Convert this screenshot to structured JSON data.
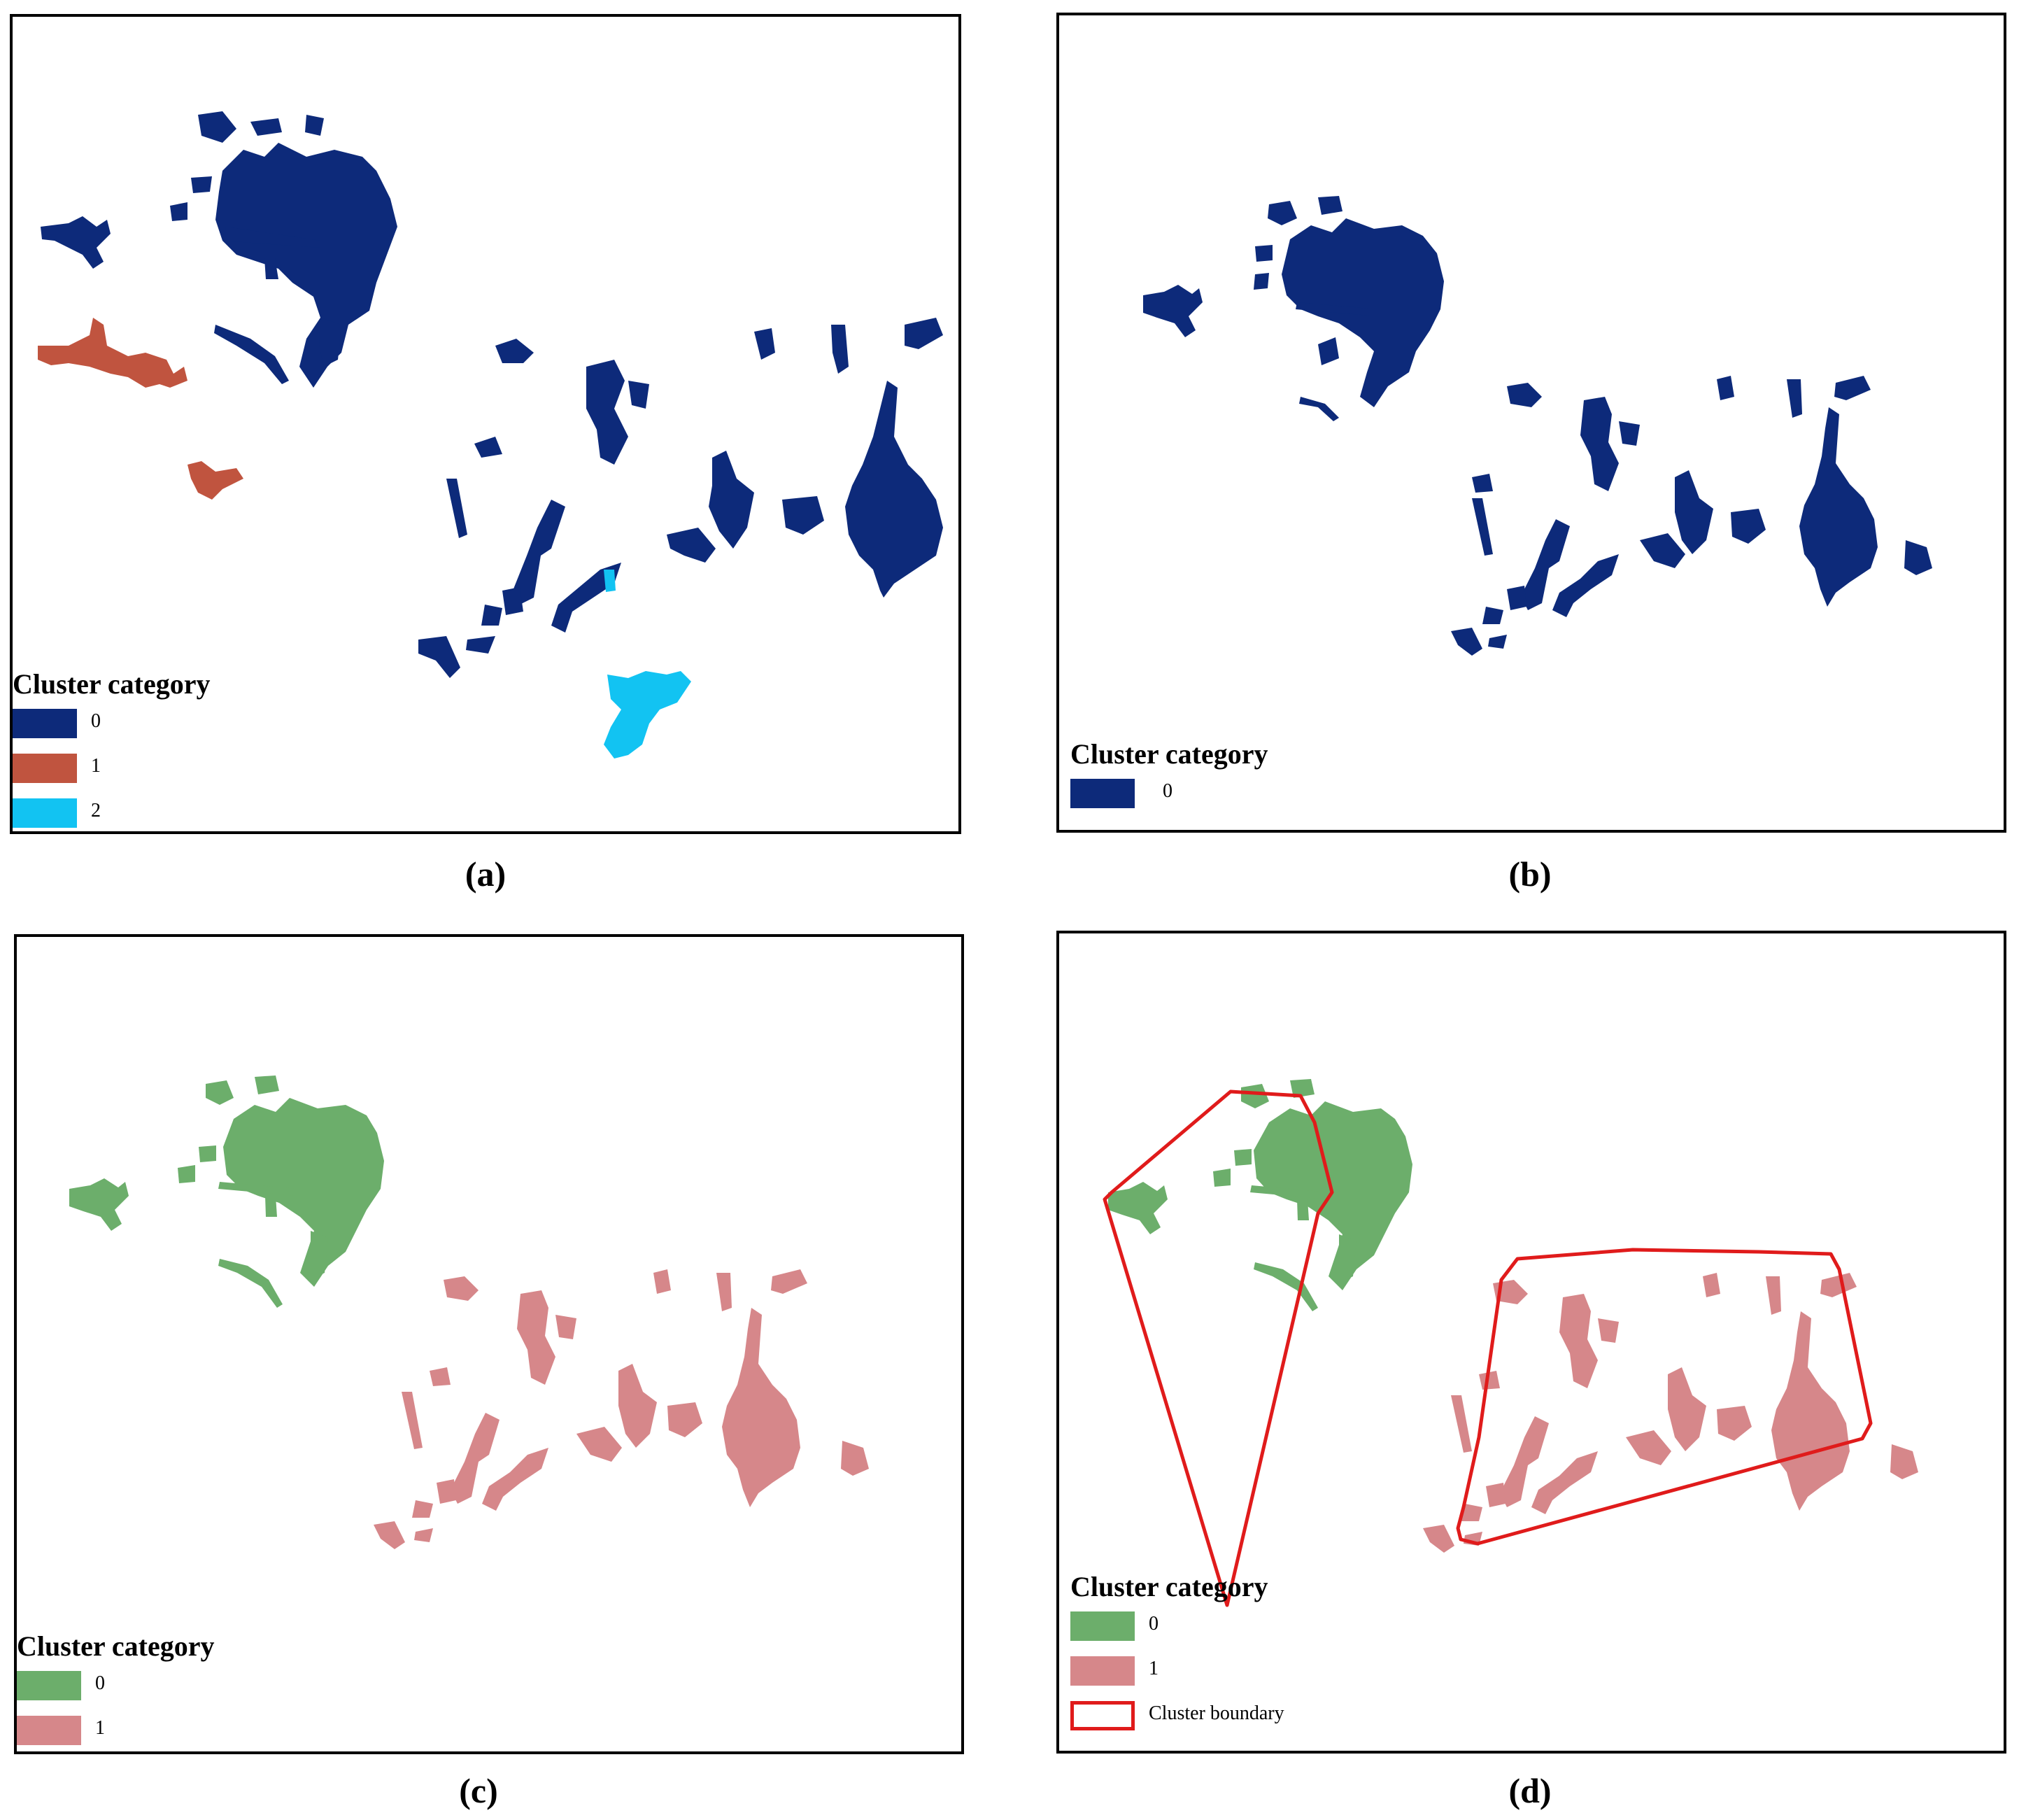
{
  "colors": {
    "cat_0_navy": "#0d2a7a",
    "cat_1_red": "#c0543f",
    "cat_2_cyan": "#12c3f2",
    "cat_0_green": "#6cae6b",
    "cat_1_pink": "#d6878a",
    "boundary": "#e01b1b"
  },
  "panels": {
    "a": {
      "caption": "(a)",
      "legend_title": "Cluster category",
      "legend": [
        {
          "label": "0",
          "color": "#0d2a7a"
        },
        {
          "label": "1",
          "color": "#c0543f"
        },
        {
          "label": "2",
          "color": "#12c3f2"
        }
      ]
    },
    "b": {
      "caption": "(b)",
      "legend_title": "Cluster category",
      "legend": [
        {
          "label": "0",
          "color": "#0d2a7a"
        }
      ]
    },
    "c": {
      "caption": "(c)",
      "legend_title": "Cluster category",
      "legend": [
        {
          "label": "0",
          "color": "#6cae6b"
        },
        {
          "label": "1",
          "color": "#d6878a"
        }
      ]
    },
    "d": {
      "caption": "(d)",
      "legend_title": "Cluster category",
      "legend": [
        {
          "label": "0",
          "color": "#6cae6b"
        },
        {
          "label": "1",
          "color": "#d6878a"
        },
        {
          "label": "Cluster boundary",
          "color": "#e01b1b",
          "outline": true
        }
      ]
    }
  }
}
